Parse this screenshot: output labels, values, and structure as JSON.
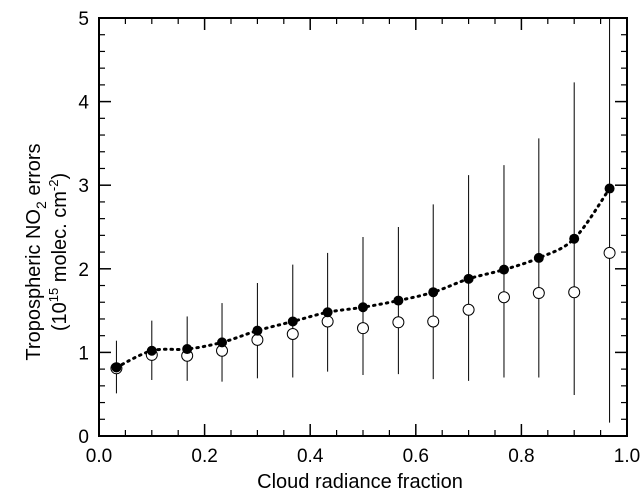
{
  "chart_data": {
    "type": "scatter",
    "xlabel": "Cloud radiance fraction",
    "ylabel": {
      "line1_prefix": "Tropospheric NO",
      "line1_sub": "2",
      "line1_suffix": " errors",
      "line2_prefix": "(10",
      "line2_sup1": "15",
      "line2_mid": " molec. cm",
      "line2_sup2": "-2",
      "line2_suffix": ")"
    },
    "xlim": [
      0.0,
      1.0
    ],
    "ylim": [
      0,
      5
    ],
    "x_ticks": [
      "0.0",
      "0.2",
      "0.4",
      "0.6",
      "0.8",
      "1.0"
    ],
    "y_ticks": [
      "0",
      "1",
      "2",
      "3",
      "4",
      "5"
    ],
    "grid": false,
    "x": [
      0.033,
      0.1,
      0.167,
      0.233,
      0.3,
      0.367,
      0.433,
      0.5,
      0.567,
      0.633,
      0.7,
      0.767,
      0.833,
      0.9,
      0.967
    ],
    "series": [
      {
        "marker": "filled-circle",
        "line": "dotted",
        "color": "#000000",
        "values": [
          0.82,
          1.02,
          1.04,
          1.12,
          1.26,
          1.37,
          1.48,
          1.54,
          1.62,
          1.72,
          1.88,
          1.99,
          2.13,
          2.36,
          2.96
        ],
        "error_lower": [
          0.51,
          0.67,
          0.66,
          0.65,
          0.69,
          0.7,
          0.77,
          0.73,
          0.74,
          0.68,
          0.66,
          0.7,
          0.7,
          0.49,
          0.16
        ],
        "error_upper": [
          1.14,
          1.38,
          1.43,
          1.59,
          1.83,
          2.05,
          2.19,
          2.38,
          2.5,
          2.77,
          3.12,
          3.24,
          3.56,
          4.23,
          5.0
        ]
      },
      {
        "marker": "open-circle",
        "line": "none",
        "color": "#000000",
        "values": [
          0.81,
          0.97,
          0.96,
          1.02,
          1.15,
          1.22,
          1.37,
          1.29,
          1.36,
          1.37,
          1.51,
          1.66,
          1.71,
          1.72,
          2.19
        ]
      }
    ]
  }
}
